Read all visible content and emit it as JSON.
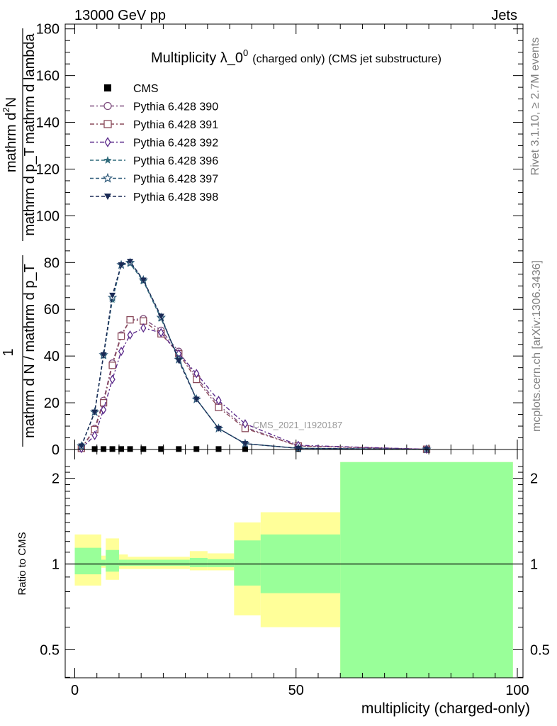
{
  "header": {
    "left": "13000 GeV pp",
    "right": "Jets"
  },
  "side_labels": {
    "rivet": "Rivet 3.1.10, ≥ 2.7M events",
    "mcplots": "mcplots.cern.ch [arXiv:1306.3436]"
  },
  "watermark": "CMS_2021_I1920187",
  "chart_data": [
    {
      "type": "line",
      "title_main": "Multiplicity λ_0",
      "title_sup": "0",
      "title_suffix": "(charged only) (CMS jet substructure)",
      "xlabel": "",
      "ylabel_line1": "mathrm d",
      "ylabel_line1_sup": "2",
      "ylabel_line1_end": "N",
      "ylabel_line2": "mathrm d p_T mathrm d lambda",
      "ylabel_one": "1",
      "ylabel_den": "mathrm d N / mathrm d p_T",
      "xlim": [
        -4,
        100
      ],
      "ylim": [
        0,
        182
      ],
      "yticks": [
        0,
        20,
        40,
        60,
        80,
        100,
        120,
        140,
        160,
        180
      ],
      "legend_position": "top-left",
      "series": [
        {
          "name": "CMS",
          "color": "#000000",
          "marker": "square-filled",
          "x": [
            1.5,
            4.5,
            6.5,
            8.5,
            10.5,
            12.5,
            15.5,
            19.5,
            23.5,
            27.5,
            32.5,
            38.5,
            50.5,
            79.5
          ],
          "y": [
            0.2,
            0.2,
            0.2,
            0.2,
            0.2,
            0.2,
            0.2,
            0.2,
            0.2,
            0.2,
            0.2,
            0.2,
            0.2,
            0.2
          ]
        },
        {
          "name": "Pythia 6.428 390",
          "color": "#7f4f7f",
          "marker": "circle-open",
          "x": [
            1.5,
            4.5,
            6.5,
            8.5,
            10.5,
            12.5,
            15.5,
            19.5,
            23.5,
            27.5,
            32.5,
            38.5,
            50.5,
            79.5
          ],
          "y": [
            0.5,
            9,
            21,
            37,
            49,
            55.5,
            56,
            51,
            42,
            31,
            19,
            9.5,
            1.5,
            0.1
          ]
        },
        {
          "name": "Pythia 6.428 391",
          "color": "#8a4a5a",
          "marker": "square-open",
          "x": [
            1.5,
            4.5,
            6.5,
            8.5,
            10.5,
            12.5,
            15.5,
            19.5,
            23.5,
            27.5,
            32.5,
            38.5,
            50.5,
            79.5
          ],
          "y": [
            0.5,
            8.5,
            20,
            36,
            48.5,
            55.5,
            55,
            49.5,
            41,
            30,
            18,
            9,
            1.5,
            0.1
          ]
        },
        {
          "name": "Pythia 6.428 392",
          "color": "#5b2a8a",
          "marker": "diamond-open",
          "x": [
            1.5,
            4.5,
            6.5,
            8.5,
            10.5,
            12.5,
            15.5,
            19.5,
            23.5,
            27.5,
            32.5,
            38.5,
            50.5,
            79.5
          ],
          "y": [
            0.4,
            6,
            17,
            30,
            42,
            49,
            52,
            50,
            41,
            32.5,
            21,
            11,
            1.8,
            0.1
          ]
        },
        {
          "name": "Pythia 6.428 396",
          "color": "#2f6a7a",
          "marker": "star-filled",
          "x": [
            1.5,
            4.5,
            6.5,
            8.5,
            10.5,
            12.5,
            15.5,
            19.5,
            23.5,
            27.5,
            32.5,
            38.5,
            50.5,
            79.5
          ],
          "y": [
            1.5,
            16,
            40,
            64,
            79,
            79.5,
            72,
            56,
            39,
            21.5,
            9,
            2.5,
            0.5,
            0.05
          ]
        },
        {
          "name": "Pythia 6.428 397",
          "color": "#2f5a7a",
          "marker": "star-open",
          "x": [
            1.5,
            4.5,
            6.5,
            8.5,
            10.5,
            12.5,
            15.5,
            19.5,
            23.5,
            27.5,
            32.5,
            38.5,
            50.5,
            79.5
          ],
          "y": [
            1.5,
            16,
            40.5,
            65,
            79,
            80,
            72.5,
            56.5,
            38.5,
            21.5,
            9,
            2.5,
            0.5,
            0.05
          ]
        },
        {
          "name": "Pythia 6.428 398",
          "color": "#1a2a55",
          "marker": "triangle-down-filled",
          "x": [
            1.5,
            4.5,
            6.5,
            8.5,
            10.5,
            12.5,
            15.5,
            19.5,
            23.5,
            27.5,
            32.5,
            38.5,
            50.5,
            79.5
          ],
          "y": [
            1.5,
            16,
            40.5,
            66,
            79,
            80.5,
            72.5,
            57,
            38,
            21.5,
            9,
            2.5,
            0.5,
            0.05
          ]
        }
      ]
    },
    {
      "type": "area",
      "xlabel": "multiplicity (charged-only)",
      "ylabel": "Ratio to CMS",
      "xlim": [
        -4,
        100
      ],
      "ylim": [
        0.38,
        2.28
      ],
      "xticks": [
        0,
        50,
        100
      ],
      "yticks": [
        0.5,
        1,
        2
      ],
      "reference_line": 1,
      "yellow_color": "#ffff99",
      "green_color": "#99ff99",
      "bins": [
        {
          "x0": 0,
          "x1": 6,
          "y_lo": 0.84,
          "y_hi": 1.27,
          "g_lo": 0.92,
          "g_hi": 1.14
        },
        {
          "x0": 6,
          "x1": 7,
          "y_lo": 0.97,
          "y_hi": 1.07,
          "g_lo": 0.985,
          "g_hi": 1.035
        },
        {
          "x0": 7,
          "x1": 10,
          "y_lo": 0.88,
          "y_hi": 1.23,
          "g_lo": 0.94,
          "g_hi": 1.12
        },
        {
          "x0": 10,
          "x1": 12,
          "y_lo": 0.96,
          "y_hi": 1.08,
          "g_lo": 0.985,
          "g_hi": 1.035
        },
        {
          "x0": 12,
          "x1": 26,
          "y_lo": 0.96,
          "y_hi": 1.06,
          "g_lo": 0.985,
          "g_hi": 1.035
        },
        {
          "x0": 26,
          "x1": 30,
          "y_lo": 0.95,
          "y_hi": 1.11,
          "g_lo": 0.975,
          "g_hi": 1.05
        },
        {
          "x0": 30,
          "x1": 36,
          "y_lo": 0.95,
          "y_hi": 1.09,
          "g_lo": 0.975,
          "g_hi": 1.04
        },
        {
          "x0": 36,
          "x1": 42,
          "y_lo": 0.66,
          "y_hi": 1.4,
          "g_lo": 0.84,
          "g_hi": 1.21
        },
        {
          "x0": 42,
          "x1": 60,
          "y_lo": 0.6,
          "y_hi": 1.52,
          "g_lo": 0.79,
          "g_hi": 1.27
        },
        {
          "x0": 60,
          "x1": 99,
          "y_lo": 0.38,
          "y_hi": 2.28,
          "g_lo": 0.38,
          "g_hi": 2.28
        }
      ]
    }
  ]
}
